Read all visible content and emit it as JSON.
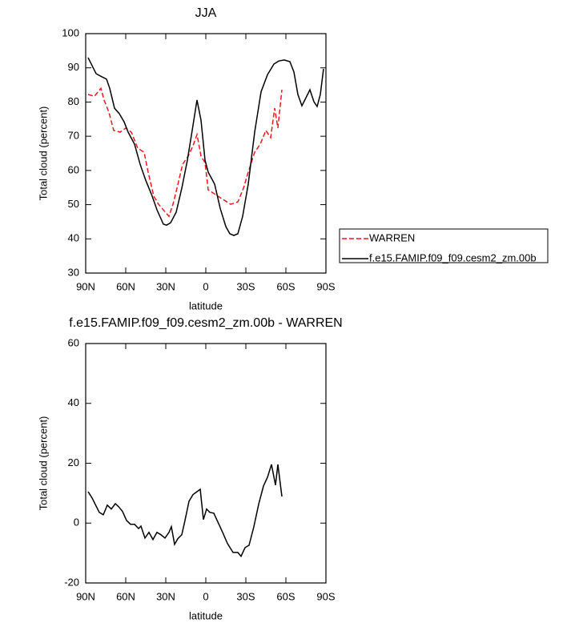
{
  "chart_data": [
    {
      "type": "line",
      "title": "JJA",
      "xlabel": "latitude",
      "ylabel": "Total cloud (percent)",
      "xlim": [
        90,
        -90
      ],
      "ylim": [
        30,
        100
      ],
      "xticks": [
        {
          "value": 90,
          "label": "90N"
        },
        {
          "value": 60,
          "label": "60N"
        },
        {
          "value": 30,
          "label": "30N"
        },
        0,
        {
          "value": -30,
          "label": "30S"
        },
        {
          "value": -60,
          "label": "60S"
        },
        {
          "value": -90,
          "label": "90S"
        }
      ],
      "yticks": [
        30,
        40,
        50,
        60,
        70,
        80,
        90,
        100
      ],
      "legend": "right",
      "series": [
        {
          "name": "WARREN",
          "color": "#e8191c",
          "dash": true,
          "x": [
            88.2,
            83.4,
            78.6,
            76.2,
            72.6,
            69,
            64.2,
            60,
            55.8,
            51,
            46.2,
            43.2,
            39,
            35.4,
            31.2,
            27.6,
            24.6,
            21.6,
            17.4,
            13.2,
            9.6,
            6.6,
            3.6,
            0.6,
            -1.8,
            -4.8,
            -9,
            -13.8,
            -18.6,
            -24,
            -28.2,
            -31.8,
            -36.6,
            -40.8,
            -45,
            -48.6,
            -51.6,
            -54,
            -57
          ],
          "values": [
            82.2,
            81.7,
            84,
            80.6,
            77,
            71.7,
            71.2,
            72.4,
            71.2,
            66.5,
            65.3,
            59.5,
            52.5,
            50.1,
            48.2,
            46.6,
            50.1,
            54.8,
            61.8,
            64.2,
            67.2,
            70.5,
            64.2,
            62.3,
            54.3,
            53.6,
            52.5,
            51.3,
            50.1,
            50.8,
            54.8,
            59.5,
            65.3,
            67.7,
            71.7,
            69.6,
            78.2,
            72.4,
            83.6
          ]
        },
        {
          "name": "f.e15.FAMIP.f09_f09.cesm2_zm.00b",
          "color": "#000000",
          "dash": false,
          "x": [
            88.2,
            82.2,
            78,
            74.4,
            72,
            68.4,
            64.8,
            61.2,
            58.2,
            53.4,
            49.2,
            45,
            40.2,
            36.6,
            31.8,
            29.4,
            26.4,
            22.2,
            18,
            13.8,
            10.2,
            6.6,
            3.6,
            0.6,
            -1.8,
            -6.6,
            -10.8,
            -15,
            -18,
            -21,
            -24,
            -27.6,
            -31.8,
            -36.6,
            -41.4,
            -46.2,
            -51,
            -54.6,
            -58.8,
            -63,
            -66,
            -69,
            -72,
            -75.6,
            -78,
            -81,
            -83.4,
            -85.8,
            -88.2
          ],
          "values": [
            93,
            88.3,
            87.4,
            86.7,
            84,
            78.2,
            76.6,
            74.2,
            71.2,
            67.7,
            61.8,
            57.1,
            52.5,
            48.5,
            44.3,
            44,
            44.7,
            47.8,
            54.8,
            63,
            71.7,
            80.6,
            74.7,
            63,
            59.5,
            56,
            48.9,
            43.6,
            41.5,
            41,
            41.5,
            46.6,
            56,
            71.2,
            83,
            88,
            91.1,
            92,
            92.3,
            91.8,
            88.8,
            82.2,
            78.9,
            81.7,
            83.6,
            80.1,
            78.7,
            82.2,
            89.7
          ]
        }
      ]
    },
    {
      "type": "line",
      "title": "f.e15.FAMIP.f09_f09.cesm2_zm.00b - WARREN",
      "xlabel": "latitude",
      "ylabel": "Total cloud (percent)",
      "xlim": [
        90,
        -90
      ],
      "ylim": [
        -20,
        60
      ],
      "xticks": [
        {
          "value": 90,
          "label": "90N"
        },
        {
          "value": 60,
          "label": "60N"
        },
        {
          "value": 30,
          "label": "30N"
        },
        0,
        {
          "value": -30,
          "label": "30S"
        },
        {
          "value": -60,
          "label": "60S"
        },
        {
          "value": -90,
          "label": "90S"
        }
      ],
      "yticks": [
        -20,
        0,
        20,
        40,
        60
      ],
      "series": [
        {
          "color": "#000000",
          "dash": false,
          "x": [
            88.2,
            85.2,
            82.2,
            79.8,
            76.8,
            73.8,
            70.8,
            67.8,
            65.4,
            62.4,
            59.4,
            56.4,
            53.4,
            50.4,
            48.6,
            45.6,
            42.6,
            39.6,
            36.6,
            33.6,
            30.6,
            27.6,
            25.8,
            23.4,
            21,
            18,
            15.6,
            12.6,
            9.6,
            6.6,
            4.2,
            1.8,
            -0.6,
            -3,
            -6,
            -9,
            -12.6,
            -16.2,
            -20.4,
            -24,
            -26.4,
            -29.4,
            -32.4,
            -36,
            -39.6,
            -43.2,
            -46.2,
            -49.2,
            -52.2,
            -54,
            -57
          ],
          "values": [
            10.5,
            8.4,
            5.7,
            3.6,
            2.8,
            6,
            4.7,
            6.5,
            5.5,
            3.9,
            0.9,
            -0.4,
            -0.4,
            -1.8,
            -1,
            -5,
            -3.1,
            -5.5,
            -3.1,
            -3.9,
            -5,
            -3.1,
            -1.2,
            -7.1,
            -5.2,
            -3.9,
            0.9,
            7.3,
            9.5,
            10.5,
            11.3,
            1.2,
            4.7,
            3.6,
            3.3,
            0.4,
            -3.1,
            -6.8,
            -9.8,
            -9.8,
            -11.1,
            -8.2,
            -7.4,
            -1.2,
            6.3,
            12.4,
            15.3,
            19.6,
            12.7,
            19.6,
            8.9
          ]
        }
      ]
    }
  ]
}
